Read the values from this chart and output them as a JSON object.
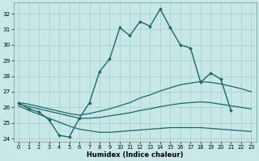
{
  "xlabel": "Humidex (Indice chaleur)",
  "xlim": [
    -0.5,
    23.5
  ],
  "ylim": [
    23.8,
    32.7
  ],
  "yticks": [
    24,
    25,
    26,
    27,
    28,
    29,
    30,
    31,
    32
  ],
  "xticks": [
    0,
    1,
    2,
    3,
    4,
    5,
    6,
    7,
    8,
    9,
    10,
    11,
    12,
    13,
    14,
    15,
    16,
    17,
    18,
    19,
    20,
    21,
    22,
    23
  ],
  "background_color": "#c8e8e8",
  "grid_color": "#a8cccc",
  "line_color": "#1a6868",
  "series": [
    {
      "x": [
        0,
        1,
        2,
        3,
        4,
        5,
        6,
        7,
        8,
        9,
        10,
        11,
        12,
        13,
        14,
        15,
        16,
        17,
        18,
        19,
        20,
        21
      ],
      "y": [
        26.3,
        25.9,
        25.7,
        25.2,
        24.2,
        24.1,
        25.3,
        26.3,
        28.3,
        29.1,
        31.1,
        30.6,
        31.5,
        31.2,
        32.3,
        31.1,
        30.0,
        29.8,
        27.6,
        28.2,
        27.8,
        25.8
      ],
      "marker": true,
      "lw": 1.0
    },
    {
      "x": [
        0,
        1,
        2,
        3,
        4,
        5,
        6,
        7,
        8,
        9,
        10,
        11,
        12,
        13,
        14,
        15,
        16,
        17,
        18,
        19,
        20,
        21,
        22,
        23
      ],
      "y": [
        26.3,
        26.2,
        26.05,
        25.9,
        25.75,
        25.6,
        25.5,
        25.6,
        25.75,
        25.9,
        26.1,
        26.3,
        26.6,
        26.8,
        27.05,
        27.25,
        27.45,
        27.55,
        27.65,
        27.6,
        27.5,
        27.35,
        27.2,
        27.0
      ],
      "marker": false,
      "lw": 0.9
    },
    {
      "x": [
        0,
        1,
        2,
        3,
        4,
        5,
        6,
        7,
        8,
        9,
        10,
        11,
        12,
        13,
        14,
        15,
        16,
        17,
        18,
        19,
        20,
        21,
        22,
        23
      ],
      "y": [
        26.2,
        26.05,
        25.9,
        25.75,
        25.6,
        25.45,
        25.3,
        25.3,
        25.35,
        25.45,
        25.55,
        25.65,
        25.8,
        25.9,
        26.05,
        26.15,
        26.25,
        26.3,
        26.35,
        26.3,
        26.2,
        26.1,
        26.0,
        25.9
      ],
      "marker": false,
      "lw": 0.9
    },
    {
      "x": [
        0,
        1,
        2,
        3,
        4,
        5,
        6,
        7,
        8,
        9,
        10,
        11,
        12,
        13,
        14,
        15,
        16,
        17,
        18,
        19,
        20,
        21,
        22,
        23
      ],
      "y": [
        26.1,
        25.8,
        25.55,
        25.3,
        25.05,
        24.8,
        24.6,
        24.5,
        24.4,
        24.4,
        24.45,
        24.5,
        24.55,
        24.6,
        24.65,
        24.7,
        24.7,
        24.7,
        24.7,
        24.65,
        24.6,
        24.55,
        24.5,
        24.45
      ],
      "marker": false,
      "lw": 0.9
    }
  ]
}
